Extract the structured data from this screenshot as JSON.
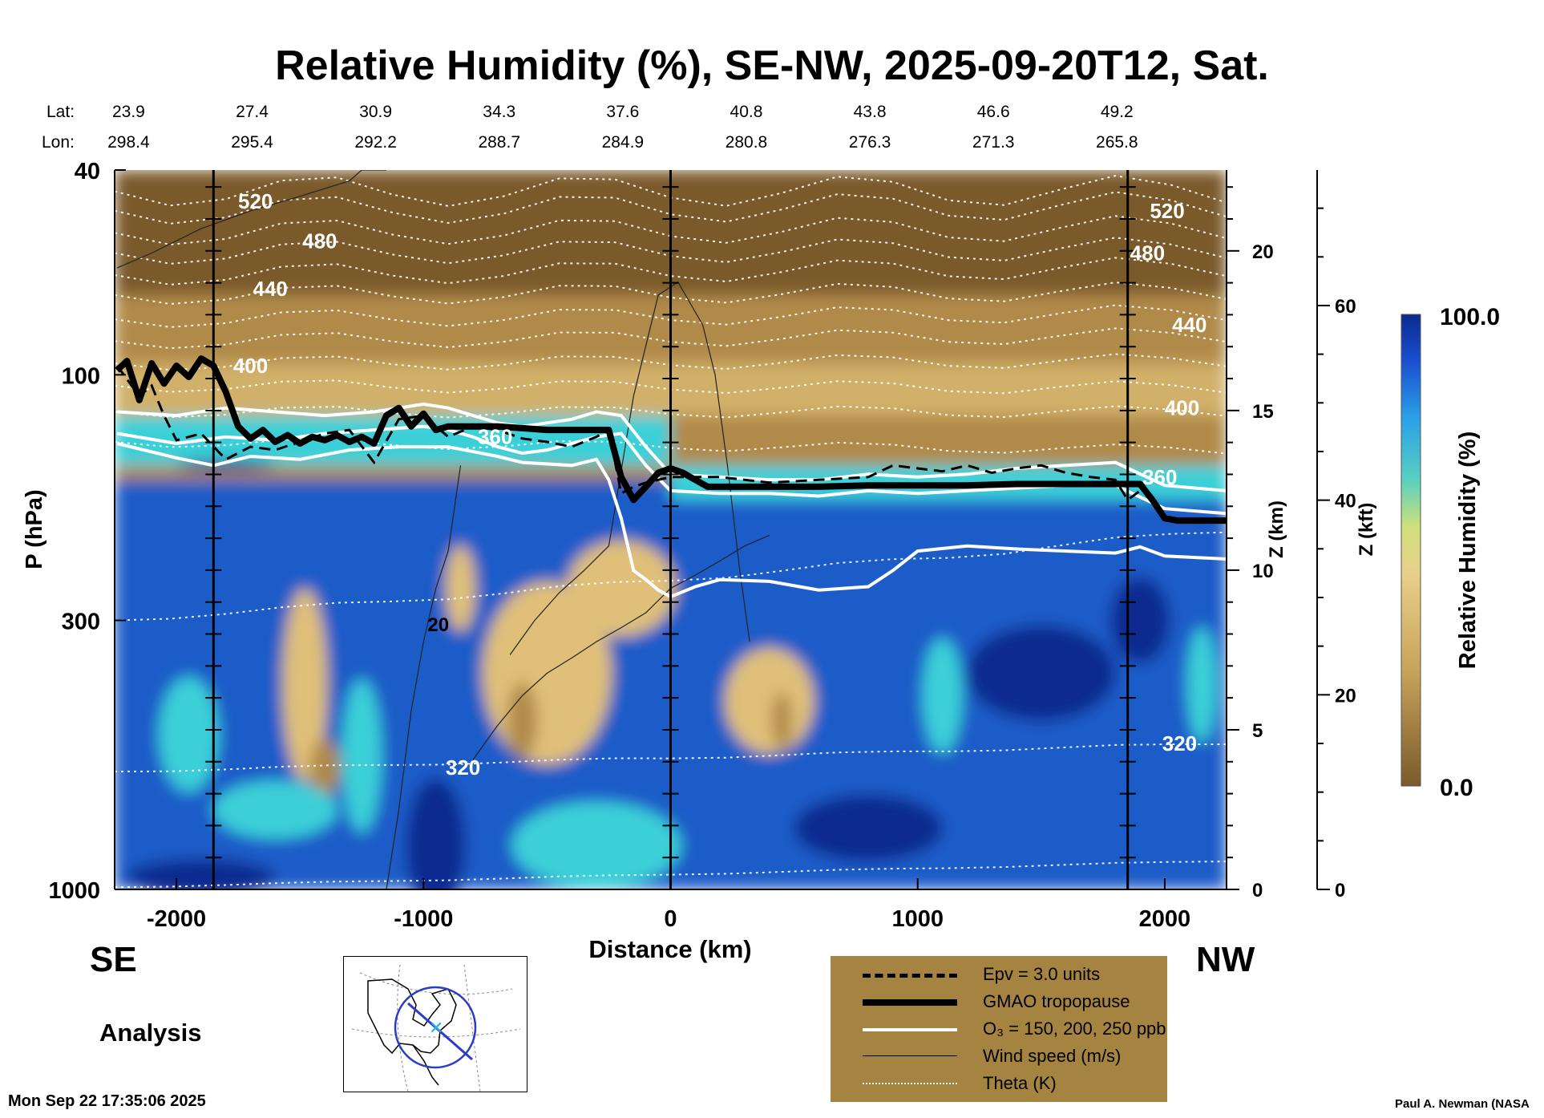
{
  "chart_data": {
    "type": "heatmap",
    "title": "Relative Humidity (%), SE-NW, 2025-09-20T12, Sat.",
    "variable": "Relative Humidity (%)",
    "xlabel": "Distance (km)",
    "ylabel": "P (hPa)",
    "y2label": "Z (km)",
    "y3label": "Z (kft)",
    "xlim": [
      -2250,
      2250
    ],
    "ylim": [
      1000,
      40
    ],
    "x_ticks": [
      -2000,
      -1000,
      0,
      1000,
      2000
    ],
    "y_ticks": [
      1000,
      300,
      100,
      40
    ],
    "z_km_ticks": [
      0,
      5,
      10,
      15,
      20
    ],
    "z_kft_ticks": [
      0,
      20,
      40,
      60
    ],
    "colorbar": {
      "label": "Relative Humidity (%)",
      "min_label": "0.0",
      "max_label": "100.0"
    },
    "header_lat_label": "Lat:",
    "header_lon_label": "Lon:",
    "header_lat": [
      "23.9",
      "27.4",
      "30.9",
      "34.3",
      "37.6",
      "40.8",
      "43.8",
      "46.6",
      "49.2"
    ],
    "header_lon": [
      "298.4",
      "295.4",
      "292.2",
      "288.7",
      "284.9",
      "280.8",
      "276.3",
      "271.3",
      "265.8"
    ],
    "header_distance_km": [
      -2200,
      -1700,
      -1200,
      -700,
      -200,
      300,
      800,
      1300,
      1800
    ],
    "vertical_markers_km": [
      -1850,
      0,
      1850
    ],
    "theta_labels": [
      {
        "text": "520",
        "x": -1680,
        "p": 46
      },
      {
        "text": "480",
        "x": -1420,
        "p": 55
      },
      {
        "text": "440",
        "x": -1620,
        "p": 68
      },
      {
        "text": "400",
        "x": -1700,
        "p": 96
      },
      {
        "text": "360",
        "x": -710,
        "p": 132
      },
      {
        "text": "320",
        "x": -840,
        "p": 580
      },
      {
        "text": "520",
        "x": 2010,
        "p": 48
      },
      {
        "text": "480",
        "x": 1930,
        "p": 58
      },
      {
        "text": "440",
        "x": 2100,
        "p": 80
      },
      {
        "text": "400",
        "x": 2070,
        "p": 116
      },
      {
        "text": "360",
        "x": 1980,
        "p": 158
      },
      {
        "text": "320",
        "x": 2060,
        "p": 520
      }
    ],
    "wind_label": {
      "text": "20",
      "x": -940,
      "p": 305
    },
    "tropopause_gmao": {
      "x": [
        -2240,
        -2200,
        -2150,
        -2100,
        -2050,
        -2000,
        -1950,
        -1900,
        -1850,
        -1800,
        -1750,
        -1700,
        -1650,
        -1600,
        -1550,
        -1500,
        -1450,
        -1400,
        -1350,
        -1300,
        -1250,
        -1200,
        -1150,
        -1100,
        -1050,
        -1000,
        -950,
        -900,
        -800,
        -700,
        -600,
        -500,
        -400,
        -300,
        -250,
        -200,
        -150,
        -100,
        -50,
        0,
        50,
        100,
        150,
        200,
        400,
        600,
        800,
        1000,
        1200,
        1400,
        1600,
        1850,
        1900,
        1950,
        2000,
        2050,
        2250
      ],
      "p": [
        98,
        94,
        112,
        95,
        104,
        96,
        101,
        93,
        96,
        108,
        126,
        133,
        128,
        135,
        131,
        136,
        132,
        134,
        131,
        135,
        132,
        136,
        120,
        116,
        126,
        119,
        128,
        126,
        126,
        126,
        127,
        128,
        128,
        128,
        128,
        158,
        175,
        165,
        155,
        152,
        155,
        160,
        165,
        165,
        165,
        165,
        164,
        164,
        164,
        163,
        163,
        163,
        163,
        175,
        190,
        192,
        192
      ]
    },
    "epv_3": {
      "x": [
        -2240,
        -2150,
        -2100,
        -2050,
        -2000,
        -1900,
        -1800,
        -1700,
        -1600,
        -1500,
        -1400,
        -1300,
        -1200,
        -1100,
        -1000,
        -900,
        -800,
        -700,
        -600,
        -500,
        -400,
        -300,
        -250,
        -200,
        -150,
        -100,
        0,
        200,
        400,
        600,
        800,
        900,
        1000,
        1100,
        1200,
        1300,
        1400,
        1500,
        1600,
        1700,
        1800,
        1850,
        1900
      ],
      "p": [
        96,
        110,
        105,
        120,
        134,
        130,
        146,
        138,
        140,
        135,
        130,
        128,
        148,
        122,
        120,
        132,
        126,
        128,
        133,
        135,
        138,
        132,
        128,
        170,
        165,
        162,
        158,
        158,
        162,
        160,
        158,
        150,
        152,
        154,
        150,
        155,
        152,
        150,
        155,
        158,
        160,
        175,
        168
      ]
    },
    "o3_contours": [
      {
        "x": [
          -2240,
          -2000,
          -1800,
          -1600,
          -1400,
          -1200,
          -1000,
          -900,
          -800,
          -700,
          -600,
          -500,
          -400,
          -300,
          -200,
          -100,
          0,
          200,
          400,
          600,
          800,
          1000,
          1200,
          1400,
          1600,
          1800,
          2000,
          2250
        ],
        "p": [
          118,
          120,
          116,
          118,
          120,
          118,
          114,
          116,
          120,
          124,
          126,
          124,
          122,
          118,
          120,
          138,
          156,
          158,
          160,
          160,
          156,
          158,
          156,
          152,
          150,
          148,
          164,
          168
        ]
      },
      {
        "x": [
          -2240,
          -2000,
          -1800,
          -1600,
          -1400,
          -1200,
          -1000,
          -900,
          -800,
          -700,
          -600,
          -500,
          -400,
          -300,
          -200,
          -100,
          0,
          200,
          400,
          600,
          800,
          1000,
          1200,
          1400,
          1600,
          1800,
          2000,
          2250
        ],
        "p": [
          130,
          136,
          132,
          134,
          130,
          128,
          126,
          128,
          132,
          138,
          142,
          140,
          136,
          132,
          130,
          150,
          168,
          170,
          170,
          172,
          168,
          170,
          168,
          166,
          164,
          164,
          182,
          186
        ]
      },
      {
        "x": [
          -2240,
          -2000,
          -1850,
          -1700,
          -1500,
          -1300,
          -1100,
          -900,
          -700,
          -600,
          -400,
          -300,
          -250,
          -200,
          -150,
          -100,
          -50,
          0,
          100,
          200,
          400,
          600,
          800,
          900,
          1000,
          1200,
          1400,
          1600,
          1800,
          1900,
          2000,
          2250
        ],
        "p": [
          136,
          145,
          150,
          144,
          146,
          140,
          138,
          138,
          144,
          148,
          150,
          146,
          160,
          190,
          240,
          250,
          262,
          270,
          258,
          250,
          252,
          262,
          258,
          240,
          220,
          215,
          218,
          220,
          222,
          216,
          225,
          228
        ]
      }
    ],
    "wind_contours": [
      {
        "x": [
          -2240,
          -2100,
          -1900,
          -1700,
          -1500,
          -1300,
          -1250,
          -1200,
          -1150
        ],
        "p": [
          62,
          58,
          52,
          48,
          45,
          42,
          40,
          40,
          40
        ]
      },
      {
        "x": [
          -1150,
          -1100,
          -1050,
          -1000,
          -950,
          -900,
          -850
        ],
        "p": [
          1000,
          700,
          450,
          330,
          260,
          220,
          150
        ]
      },
      {
        "x": [
          -650,
          -550,
          -450,
          -350,
          -250,
          -150,
          -50,
          30,
          130,
          180,
          230,
          280,
          320
        ],
        "p": [
          350,
          300,
          265,
          240,
          215,
          110,
          70,
          66,
          80,
          100,
          150,
          240,
          330
        ]
      },
      {
        "x": [
          -800,
          -700,
          -600,
          -500,
          -400,
          -300,
          -200,
          -100,
          0,
          100,
          200,
          300,
          400
        ],
        "p": [
          560,
          480,
          420,
          380,
          355,
          330,
          310,
          290,
          260,
          245,
          230,
          215,
          205
        ]
      }
    ]
  },
  "map_legend": {
    "epv_label": "Epv = 3.0 units",
    "tropopause_label": "GMAO tropopause",
    "o3_label": "O₃ = 150, 200, 250 ppb",
    "wind_label": "Wind speed (m/s)",
    "theta_label": "Theta (K)"
  },
  "labels": {
    "se": "SE",
    "nw": "NW",
    "analysis": "Analysis",
    "date": "Mon Sep 22 17:35:06 2025",
    "credit": "Paul A. Newman (NASA"
  },
  "colors": {
    "dry_dark": "#7a5a2a",
    "dry": "#b08a4a",
    "mid": "#e0c078",
    "yellowgreen": "#d8e070",
    "cyan": "#3ad0d8",
    "blue": "#1a5cc8",
    "navy": "#0a2a90",
    "legend_bg": "#a58340"
  }
}
